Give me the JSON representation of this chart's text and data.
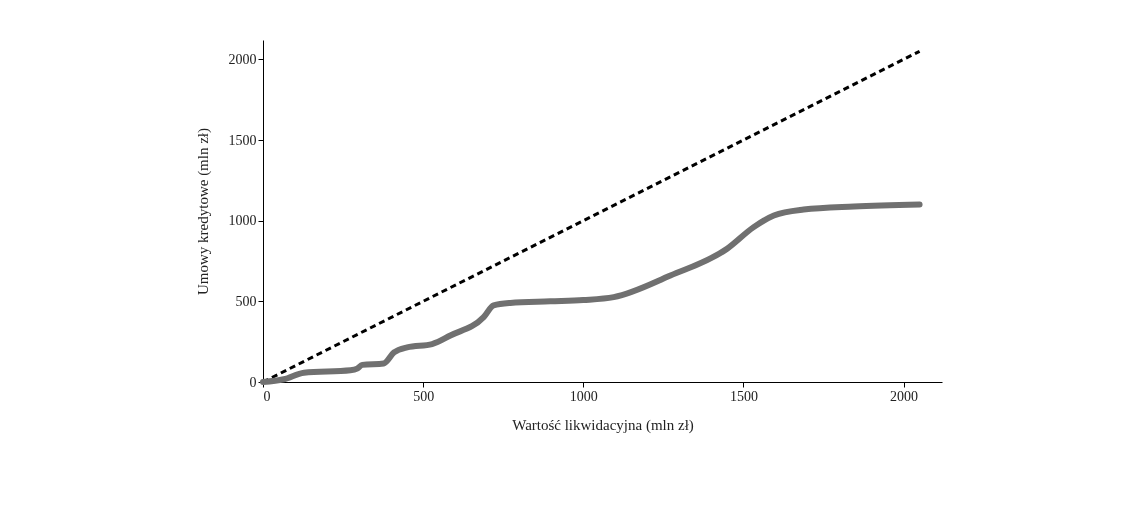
{
  "chart_data": {
    "type": "line",
    "xlabel": "Wartość likwidacyjna (mln zł)",
    "ylabel": "Umowy kredytowe (mln zł)",
    "xlim": [
      0,
      2120
    ],
    "ylim": [
      0,
      2120
    ],
    "xticks": [
      0,
      500,
      1000,
      1500,
      2000
    ],
    "yticks": [
      0,
      500,
      1000,
      1500,
      2000
    ],
    "grid": false,
    "series": [
      {
        "color": "#000000",
        "line_style": "dashed",
        "x": [
          0,
          2050
        ],
        "values": [
          0,
          2050
        ]
      },
      {
        "color": "#707070",
        "line_style": "solid",
        "x": [
          0,
          65,
          128,
          273,
          294,
          310,
          377,
          409,
          450,
          528,
          585,
          689,
          720,
          772,
          897,
          1000,
          1095,
          1272,
          1449,
          1532,
          1595,
          1688,
          1845,
          2050
        ],
        "values": [
          0,
          17,
          58,
          73,
          83,
          106,
          115,
          183,
          215,
          235,
          288,
          402,
          475,
          490,
          500,
          508,
          526,
          660,
          826,
          960,
          1032,
          1069,
          1088,
          1100
        ]
      }
    ]
  }
}
